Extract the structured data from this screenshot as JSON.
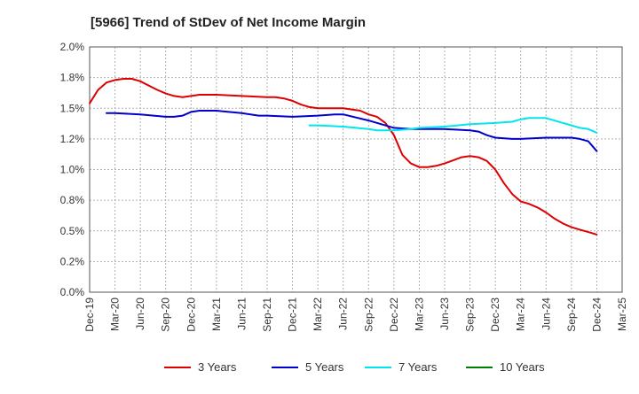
{
  "chart_data": {
    "type": "line",
    "title": "[5966]  Trend of StDev of Net Income Margin",
    "xlabel": "",
    "ylabel": "",
    "ylim": [
      0,
      2.0
    ],
    "y_ticks": [
      "0.0%",
      "0.2%",
      "0.5%",
      "0.8%",
      "1.0%",
      "1.2%",
      "1.5%",
      "1.8%",
      "2.0%"
    ],
    "y_tick_values": [
      0,
      0.25,
      0.5,
      0.75,
      1.0,
      1.25,
      1.5,
      1.75,
      2.0
    ],
    "x_ticks": [
      "Dec-19",
      "Mar-20",
      "Jun-20",
      "Sep-20",
      "Dec-20",
      "Mar-21",
      "Jun-21",
      "Sep-21",
      "Dec-21",
      "Mar-22",
      "Jun-22",
      "Sep-22",
      "Dec-22",
      "Mar-23",
      "Jun-23",
      "Sep-23",
      "Dec-23",
      "Mar-24",
      "Jun-24",
      "Sep-24",
      "Dec-24",
      "Mar-25"
    ],
    "grid": true,
    "legend_position": "bottom",
    "series": [
      {
        "name": "3 Years",
        "color": "#dd0000",
        "x": [
          "Dec-19",
          "Jan-20",
          "Feb-20",
          "Mar-20",
          "Apr-20",
          "May-20",
          "Jun-20",
          "Aug-20",
          "Sep-20",
          "Oct-20",
          "Nov-20",
          "Dec-20",
          "Jan-21",
          "Mar-21",
          "Jun-21",
          "Sep-21",
          "Oct-21",
          "Nov-21",
          "Dec-21",
          "Jan-22",
          "Feb-22",
          "Mar-22",
          "Jun-22",
          "Aug-22",
          "Sep-22",
          "Oct-22",
          "Nov-22",
          "Dec-22",
          "Jan-23",
          "Feb-23",
          "Mar-23",
          "Apr-23",
          "May-23",
          "Jun-23",
          "Aug-23",
          "Sep-23",
          "Oct-23",
          "Nov-23",
          "Dec-23",
          "Jan-24",
          "Feb-24",
          "Mar-24",
          "Apr-24",
          "May-24",
          "Jun-24",
          "Jul-24",
          "Aug-24",
          "Sep-24",
          "Oct-24",
          "Nov-24",
          "Dec-24"
        ],
        "y": [
          1.54,
          1.65,
          1.71,
          1.73,
          1.74,
          1.74,
          1.72,
          1.65,
          1.62,
          1.6,
          1.59,
          1.6,
          1.61,
          1.61,
          1.6,
          1.59,
          1.59,
          1.58,
          1.56,
          1.53,
          1.51,
          1.5,
          1.5,
          1.48,
          1.45,
          1.43,
          1.38,
          1.28,
          1.12,
          1.05,
          1.02,
          1.02,
          1.03,
          1.05,
          1.1,
          1.11,
          1.1,
          1.07,
          1.0,
          0.89,
          0.8,
          0.74,
          0.72,
          0.69,
          0.65,
          0.6,
          0.56,
          0.53,
          0.51,
          0.49,
          0.47
        ]
      },
      {
        "name": "5 Years",
        "color": "#0000cc",
        "x": [
          "Feb-20",
          "Mar-20",
          "Jun-20",
          "Sep-20",
          "Oct-20",
          "Nov-20",
          "Dec-20",
          "Jan-21",
          "Mar-21",
          "Jun-21",
          "Aug-21",
          "Sep-21",
          "Dec-21",
          "Mar-22",
          "May-22",
          "Jun-22",
          "Sep-22",
          "Dec-22",
          "Feb-23",
          "Mar-23",
          "Jun-23",
          "Sep-23",
          "Oct-23",
          "Nov-23",
          "Dec-23",
          "Feb-24",
          "Mar-24",
          "Jun-24",
          "Sep-24",
          "Oct-24",
          "Nov-24",
          "Dec-24"
        ],
        "y": [
          1.46,
          1.46,
          1.45,
          1.43,
          1.43,
          1.44,
          1.47,
          1.48,
          1.48,
          1.46,
          1.44,
          1.44,
          1.43,
          1.44,
          1.45,
          1.45,
          1.4,
          1.34,
          1.33,
          1.33,
          1.33,
          1.32,
          1.31,
          1.28,
          1.26,
          1.25,
          1.25,
          1.26,
          1.26,
          1.25,
          1.23,
          1.15
        ]
      },
      {
        "name": "7 Years",
        "color": "#00e5ee",
        "x": [
          "Feb-22",
          "Mar-22",
          "Jun-22",
          "Sep-22",
          "Oct-22",
          "Nov-22",
          "Dec-22",
          "Feb-23",
          "Mar-23",
          "Jun-23",
          "Sep-23",
          "Dec-23",
          "Feb-24",
          "Mar-24",
          "Apr-24",
          "May-24",
          "Jun-24",
          "Aug-24",
          "Sep-24",
          "Oct-24",
          "Nov-24",
          "Dec-24"
        ],
        "y": [
          1.36,
          1.36,
          1.35,
          1.33,
          1.32,
          1.32,
          1.32,
          1.33,
          1.34,
          1.35,
          1.37,
          1.38,
          1.39,
          1.41,
          1.42,
          1.42,
          1.42,
          1.38,
          1.36,
          1.34,
          1.33,
          1.3
        ]
      },
      {
        "name": "10 Years",
        "color": "#008000",
        "x": [],
        "y": []
      }
    ]
  }
}
